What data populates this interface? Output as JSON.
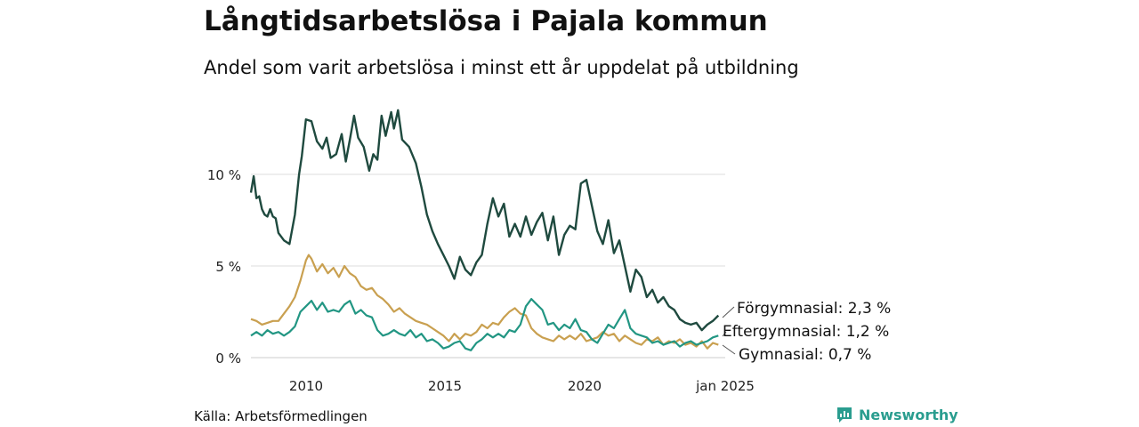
{
  "header": {
    "title": "Långtidsarbetslösa i Pajala kommun",
    "subtitle": "Andel som varit arbetslösa i minst ett år uppdelat på utbildning"
  },
  "footer": {
    "source": "Källa: Arbetsförmedlingen",
    "brand": "Newsworthy"
  },
  "colors": {
    "forgymnasial": "#1f4a3f",
    "gymnasial": "#c9a050",
    "eftergymnasial": "#229683",
    "grid": "#dddddd",
    "brand": "#2a9d8f"
  },
  "chart_data": {
    "type": "line",
    "title": "Långtidsarbetslösa i Pajala kommun",
    "subtitle": "Andel som varit arbetslösa i minst ett år uppdelat på utbildning",
    "xlabel": "",
    "ylabel": "",
    "xlim": [
      2008.0,
      2025.25
    ],
    "ylim": [
      0,
      14
    ],
    "yticks": [
      0,
      5,
      10
    ],
    "ytick_labels": [
      "0 %",
      "5 %",
      "10 %"
    ],
    "xticks": [
      2010,
      2015,
      2020,
      2025
    ],
    "xtick_labels": [
      "2010",
      "2015",
      "2020",
      "jan 2025"
    ],
    "grid": true,
    "series": [
      {
        "name": "Förgymnasial",
        "end_label": "Förgymnasial: 2,3 %",
        "points": [
          [
            2008.0,
            9.0
          ],
          [
            2008.1,
            9.9
          ],
          [
            2008.2,
            8.7
          ],
          [
            2008.3,
            8.8
          ],
          [
            2008.4,
            8.1
          ],
          [
            2008.5,
            7.8
          ],
          [
            2008.6,
            7.7
          ],
          [
            2008.7,
            8.1
          ],
          [
            2008.8,
            7.7
          ],
          [
            2008.9,
            7.6
          ],
          [
            2009.0,
            6.8
          ],
          [
            2009.2,
            6.4
          ],
          [
            2009.4,
            6.2
          ],
          [
            2009.6,
            7.8
          ],
          [
            2009.75,
            10.0
          ],
          [
            2009.85,
            11.0
          ],
          [
            2010.0,
            13.0
          ],
          [
            2010.2,
            12.9
          ],
          [
            2010.4,
            11.8
          ],
          [
            2010.6,
            11.4
          ],
          [
            2010.75,
            12.0
          ],
          [
            2010.9,
            10.9
          ],
          [
            2011.1,
            11.1
          ],
          [
            2011.3,
            12.2
          ],
          [
            2011.45,
            10.7
          ],
          [
            2011.6,
            11.9
          ],
          [
            2011.75,
            13.2
          ],
          [
            2011.9,
            12.0
          ],
          [
            2012.1,
            11.5
          ],
          [
            2012.3,
            10.2
          ],
          [
            2012.45,
            11.1
          ],
          [
            2012.6,
            10.8
          ],
          [
            2012.75,
            13.2
          ],
          [
            2012.9,
            12.1
          ],
          [
            2013.1,
            13.4
          ],
          [
            2013.2,
            12.5
          ],
          [
            2013.35,
            13.5
          ],
          [
            2013.5,
            11.9
          ],
          [
            2013.75,
            11.5
          ],
          [
            2014.0,
            10.6
          ],
          [
            2014.2,
            9.3
          ],
          [
            2014.4,
            7.8
          ],
          [
            2014.6,
            6.9
          ],
          [
            2014.8,
            6.2
          ],
          [
            2015.0,
            5.6
          ],
          [
            2015.2,
            5.0
          ],
          [
            2015.4,
            4.3
          ],
          [
            2015.6,
            5.5
          ],
          [
            2015.8,
            4.8
          ],
          [
            2016.0,
            4.5
          ],
          [
            2016.2,
            5.2
          ],
          [
            2016.4,
            5.6
          ],
          [
            2016.6,
            7.3
          ],
          [
            2016.8,
            8.7
          ],
          [
            2017.0,
            7.7
          ],
          [
            2017.2,
            8.4
          ],
          [
            2017.4,
            6.6
          ],
          [
            2017.6,
            7.3
          ],
          [
            2017.8,
            6.6
          ],
          [
            2018.0,
            7.7
          ],
          [
            2018.2,
            6.7
          ],
          [
            2018.4,
            7.4
          ],
          [
            2018.6,
            7.9
          ],
          [
            2018.8,
            6.4
          ],
          [
            2019.0,
            7.7
          ],
          [
            2019.2,
            5.6
          ],
          [
            2019.4,
            6.7
          ],
          [
            2019.6,
            7.2
          ],
          [
            2019.8,
            7.0
          ],
          [
            2020.0,
            9.5
          ],
          [
            2020.2,
            9.7
          ],
          [
            2020.4,
            8.3
          ],
          [
            2020.6,
            6.9
          ],
          [
            2020.8,
            6.2
          ],
          [
            2021.0,
            7.5
          ],
          [
            2021.2,
            5.7
          ],
          [
            2021.4,
            6.4
          ],
          [
            2021.6,
            5.0
          ],
          [
            2021.8,
            3.6
          ],
          [
            2022.0,
            4.8
          ],
          [
            2022.2,
            4.4
          ],
          [
            2022.4,
            3.3
          ],
          [
            2022.6,
            3.7
          ],
          [
            2022.8,
            3.0
          ],
          [
            2023.0,
            3.3
          ],
          [
            2023.2,
            2.8
          ],
          [
            2023.4,
            2.6
          ],
          [
            2023.6,
            2.1
          ],
          [
            2023.8,
            1.9
          ],
          [
            2024.0,
            1.8
          ],
          [
            2024.2,
            1.9
          ],
          [
            2024.4,
            1.5
          ],
          [
            2024.6,
            1.8
          ],
          [
            2024.8,
            2.0
          ],
          [
            2025.0,
            2.3
          ]
        ]
      },
      {
        "name": "Gymnasial",
        "end_label": "Gymnasial: 0,7 %",
        "points": [
          [
            2008.0,
            2.1
          ],
          [
            2008.2,
            2.0
          ],
          [
            2008.4,
            1.8
          ],
          [
            2008.6,
            1.9
          ],
          [
            2008.8,
            2.0
          ],
          [
            2009.0,
            2.0
          ],
          [
            2009.2,
            2.4
          ],
          [
            2009.4,
            2.8
          ],
          [
            2009.6,
            3.3
          ],
          [
            2009.8,
            4.2
          ],
          [
            2010.0,
            5.3
          ],
          [
            2010.1,
            5.6
          ],
          [
            2010.2,
            5.4
          ],
          [
            2010.4,
            4.7
          ],
          [
            2010.6,
            5.1
          ],
          [
            2010.8,
            4.6
          ],
          [
            2011.0,
            4.9
          ],
          [
            2011.2,
            4.4
          ],
          [
            2011.4,
            5.0
          ],
          [
            2011.6,
            4.6
          ],
          [
            2011.8,
            4.4
          ],
          [
            2012.0,
            3.9
          ],
          [
            2012.2,
            3.7
          ],
          [
            2012.4,
            3.8
          ],
          [
            2012.6,
            3.4
          ],
          [
            2012.8,
            3.2
          ],
          [
            2013.0,
            2.9
          ],
          [
            2013.2,
            2.5
          ],
          [
            2013.4,
            2.7
          ],
          [
            2013.6,
            2.4
          ],
          [
            2013.8,
            2.2
          ],
          [
            2014.0,
            2.0
          ],
          [
            2014.2,
            1.9
          ],
          [
            2014.4,
            1.8
          ],
          [
            2014.6,
            1.6
          ],
          [
            2014.8,
            1.4
          ],
          [
            2015.0,
            1.2
          ],
          [
            2015.2,
            0.9
          ],
          [
            2015.4,
            1.3
          ],
          [
            2015.6,
            1.0
          ],
          [
            2015.8,
            1.3
          ],
          [
            2016.0,
            1.2
          ],
          [
            2016.2,
            1.4
          ],
          [
            2016.4,
            1.8
          ],
          [
            2016.6,
            1.6
          ],
          [
            2016.8,
            1.9
          ],
          [
            2017.0,
            1.8
          ],
          [
            2017.2,
            2.2
          ],
          [
            2017.4,
            2.5
          ],
          [
            2017.6,
            2.7
          ],
          [
            2017.8,
            2.4
          ],
          [
            2018.0,
            2.3
          ],
          [
            2018.2,
            1.6
          ],
          [
            2018.4,
            1.3
          ],
          [
            2018.6,
            1.1
          ],
          [
            2018.8,
            1.0
          ],
          [
            2019.0,
            0.9
          ],
          [
            2019.2,
            1.2
          ],
          [
            2019.4,
            1.0
          ],
          [
            2019.6,
            1.2
          ],
          [
            2019.8,
            1.0
          ],
          [
            2020.0,
            1.3
          ],
          [
            2020.2,
            0.9
          ],
          [
            2020.4,
            1.0
          ],
          [
            2020.6,
            1.1
          ],
          [
            2020.8,
            1.4
          ],
          [
            2021.0,
            1.2
          ],
          [
            2021.2,
            1.3
          ],
          [
            2021.4,
            0.9
          ],
          [
            2021.6,
            1.2
          ],
          [
            2021.8,
            1.0
          ],
          [
            2022.0,
            0.8
          ],
          [
            2022.2,
            0.7
          ],
          [
            2022.4,
            1.0
          ],
          [
            2022.6,
            0.9
          ],
          [
            2022.8,
            1.1
          ],
          [
            2023.0,
            0.7
          ],
          [
            2023.2,
            0.9
          ],
          [
            2023.4,
            0.8
          ],
          [
            2023.6,
            1.0
          ],
          [
            2023.8,
            0.7
          ],
          [
            2024.0,
            0.8
          ],
          [
            2024.2,
            0.6
          ],
          [
            2024.4,
            0.9
          ],
          [
            2024.6,
            0.5
          ],
          [
            2024.8,
            0.8
          ],
          [
            2025.0,
            0.7
          ]
        ]
      },
      {
        "name": "Eftergymnasial",
        "end_label": "Eftergymnasial: 1,2 %",
        "points": [
          [
            2008.0,
            1.2
          ],
          [
            2008.2,
            1.4
          ],
          [
            2008.4,
            1.2
          ],
          [
            2008.6,
            1.5
          ],
          [
            2008.8,
            1.3
          ],
          [
            2009.0,
            1.4
          ],
          [
            2009.2,
            1.2
          ],
          [
            2009.4,
            1.4
          ],
          [
            2009.6,
            1.7
          ],
          [
            2009.8,
            2.5
          ],
          [
            2010.0,
            2.8
          ],
          [
            2010.2,
            3.1
          ],
          [
            2010.4,
            2.6
          ],
          [
            2010.6,
            3.0
          ],
          [
            2010.8,
            2.5
          ],
          [
            2011.0,
            2.6
          ],
          [
            2011.2,
            2.5
          ],
          [
            2011.4,
            2.9
          ],
          [
            2011.6,
            3.1
          ],
          [
            2011.8,
            2.4
          ],
          [
            2012.0,
            2.6
          ],
          [
            2012.2,
            2.3
          ],
          [
            2012.4,
            2.2
          ],
          [
            2012.6,
            1.5
          ],
          [
            2012.8,
            1.2
          ],
          [
            2013.0,
            1.3
          ],
          [
            2013.2,
            1.5
          ],
          [
            2013.4,
            1.3
          ],
          [
            2013.6,
            1.2
          ],
          [
            2013.8,
            1.5
          ],
          [
            2014.0,
            1.1
          ],
          [
            2014.2,
            1.3
          ],
          [
            2014.4,
            0.9
          ],
          [
            2014.6,
            1.0
          ],
          [
            2014.8,
            0.8
          ],
          [
            2015.0,
            0.5
          ],
          [
            2015.2,
            0.6
          ],
          [
            2015.4,
            0.8
          ],
          [
            2015.6,
            0.9
          ],
          [
            2015.8,
            0.5
          ],
          [
            2016.0,
            0.4
          ],
          [
            2016.2,
            0.8
          ],
          [
            2016.4,
            1.0
          ],
          [
            2016.6,
            1.3
          ],
          [
            2016.8,
            1.1
          ],
          [
            2017.0,
            1.3
          ],
          [
            2017.2,
            1.1
          ],
          [
            2017.4,
            1.5
          ],
          [
            2017.6,
            1.4
          ],
          [
            2017.8,
            1.8
          ],
          [
            2018.0,
            2.8
          ],
          [
            2018.2,
            3.2
          ],
          [
            2018.4,
            2.9
          ],
          [
            2018.6,
            2.6
          ],
          [
            2018.8,
            1.8
          ],
          [
            2019.0,
            1.9
          ],
          [
            2019.2,
            1.5
          ],
          [
            2019.4,
            1.8
          ],
          [
            2019.6,
            1.6
          ],
          [
            2019.8,
            2.1
          ],
          [
            2020.0,
            1.5
          ],
          [
            2020.2,
            1.4
          ],
          [
            2020.4,
            1.0
          ],
          [
            2020.6,
            0.8
          ],
          [
            2020.8,
            1.3
          ],
          [
            2021.0,
            1.8
          ],
          [
            2021.2,
            1.6
          ],
          [
            2021.4,
            2.1
          ],
          [
            2021.6,
            2.6
          ],
          [
            2021.8,
            1.6
          ],
          [
            2022.0,
            1.3
          ],
          [
            2022.2,
            1.2
          ],
          [
            2022.4,
            1.1
          ],
          [
            2022.6,
            0.8
          ],
          [
            2022.8,
            0.9
          ],
          [
            2023.0,
            0.7
          ],
          [
            2023.2,
            0.8
          ],
          [
            2023.4,
            0.9
          ],
          [
            2023.6,
            0.6
          ],
          [
            2023.8,
            0.8
          ],
          [
            2024.0,
            0.9
          ],
          [
            2024.2,
            0.7
          ],
          [
            2024.4,
            0.8
          ],
          [
            2024.6,
            0.9
          ],
          [
            2024.8,
            1.1
          ],
          [
            2025.0,
            1.2
          ]
        ]
      }
    ]
  }
}
